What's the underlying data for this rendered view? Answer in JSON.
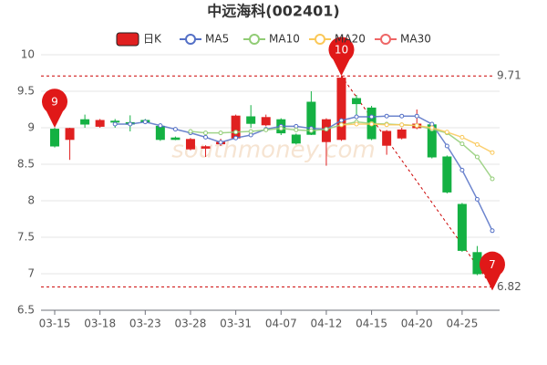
{
  "chart_data": {
    "type": "candlestick",
    "title": "中远海科(002401)",
    "watermark": "southmoney.com",
    "categories": [
      "03-15",
      null,
      null,
      "03-18",
      null,
      null,
      "03-23",
      null,
      null,
      "03-28",
      null,
      null,
      "03-31",
      null,
      null,
      "04-07",
      null,
      null,
      "04-12",
      null,
      null,
      "04-15",
      null,
      null,
      "04-20",
      null,
      null,
      "04-25",
      null,
      null
    ],
    "candles": {
      "name": "日K",
      "up_color": "#e02020",
      "down_color": "#14b143",
      "open": [
        8.98,
        8.84,
        9.11,
        9.02,
        9.09,
        9.07,
        9.1,
        9.02,
        8.86,
        8.71,
        8.72,
        8.78,
        8.86,
        9.15,
        9.04,
        9.11,
        8.9,
        9.35,
        8.81,
        8.84,
        9.4,
        9.27,
        8.76,
        8.86,
        9.0,
        9.04,
        8.6,
        7.95,
        7.29,
        6.98
      ],
      "close": [
        8.75,
        8.99,
        9.05,
        9.1,
        9.08,
        9.05,
        9.08,
        8.84,
        8.84,
        8.84,
        8.74,
        8.8,
        9.16,
        9.06,
        9.14,
        8.93,
        8.79,
        8.91,
        9.11,
        9.68,
        9.33,
        8.85,
        8.95,
        8.97,
        9.05,
        8.6,
        8.12,
        7.32,
        7.0,
        6.9
      ],
      "high": [
        9.0,
        9.0,
        9.18,
        9.12,
        9.12,
        9.17,
        9.12,
        9.05,
        8.88,
        8.86,
        8.76,
        8.85,
        9.18,
        9.31,
        9.18,
        9.13,
        8.92,
        9.5,
        9.13,
        9.71,
        9.45,
        9.3,
        8.97,
        9.0,
        9.25,
        9.08,
        8.62,
        7.97,
        7.38,
        7.0
      ],
      "low": [
        8.73,
        8.56,
        9.0,
        9.0,
        9.0,
        8.95,
        9.06,
        8.82,
        8.83,
        8.69,
        8.6,
        8.75,
        8.84,
        9.0,
        9.02,
        8.9,
        8.77,
        8.9,
        8.48,
        8.82,
        9.12,
        8.83,
        8.63,
        8.84,
        8.98,
        8.58,
        8.1,
        7.3,
        6.98,
        6.82
      ],
      "pins": [
        "9",
        null,
        null,
        null,
        null,
        null,
        null,
        null,
        null,
        null,
        null,
        null,
        null,
        null,
        null,
        null,
        null,
        null,
        null,
        "10",
        null,
        null,
        null,
        null,
        null,
        null,
        null,
        null,
        null,
        "7"
      ]
    },
    "series": [
      {
        "name": "MA5",
        "color": "#5470c6",
        "values": [
          null,
          null,
          null,
          null,
          9.05,
          9.05,
          9.08,
          9.03,
          8.98,
          8.93,
          8.87,
          8.8,
          8.86,
          8.9,
          8.98,
          9.02,
          9.02,
          8.99,
          8.98,
          9.1,
          9.15,
          9.15,
          9.16,
          9.16,
          9.16,
          9.05,
          8.75,
          8.42,
          8.02,
          7.59
        ]
      },
      {
        "name": "MA10",
        "color": "#91cc75",
        "values": [
          null,
          null,
          null,
          null,
          null,
          null,
          null,
          null,
          null,
          8.95,
          8.93,
          8.93,
          8.94,
          8.95,
          8.97,
          8.99,
          8.97,
          8.96,
          8.98,
          9.04,
          9.08,
          9.06,
          9.05,
          9.04,
          9.03,
          8.98,
          8.93,
          8.78,
          8.6,
          8.3
        ]
      },
      {
        "name": "MA20",
        "color": "#fac858",
        "values": [
          null,
          null,
          null,
          null,
          null,
          null,
          null,
          null,
          null,
          null,
          null,
          null,
          null,
          null,
          null,
          null,
          null,
          null,
          null,
          9.04,
          9.05,
          9.05,
          9.04,
          9.04,
          9.03,
          9.0,
          8.94,
          8.87,
          8.77,
          8.66
        ]
      },
      {
        "name": "MA30",
        "color": "#ee6666",
        "values": [
          null,
          null,
          null,
          null,
          null,
          null,
          null,
          null,
          null,
          null,
          null,
          null,
          null,
          null,
          null,
          null,
          null,
          null,
          null,
          null,
          null,
          null,
          null,
          null,
          null,
          null,
          null,
          null,
          null,
          null
        ]
      }
    ],
    "hlines": [
      9.71,
      6.82
    ],
    "ylim": [
      6.5,
      10
    ],
    "yticks": [
      6.5,
      7,
      7.5,
      8,
      8.5,
      9,
      9.5,
      10
    ],
    "grid": true
  }
}
